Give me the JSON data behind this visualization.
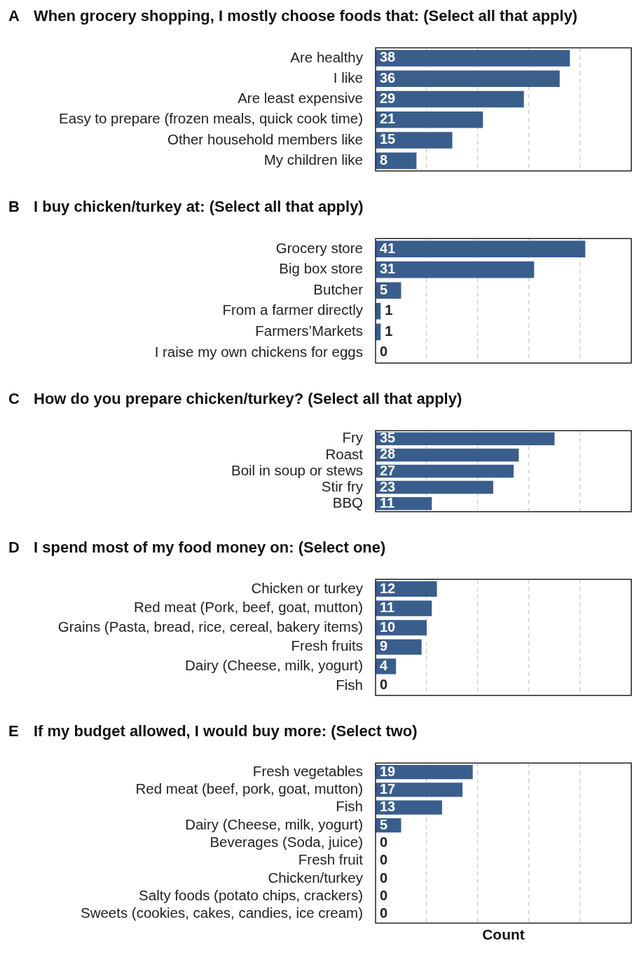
{
  "chart_data": [
    {
      "type": "bar",
      "orientation": "horizontal",
      "annotations": [
        "A"
      ],
      "title": "When grocery shopping, I mostly choose foods that: (Select all that apply)",
      "categories": [
        "Are healthy",
        "I like",
        "Are least expensive",
        "Easy to prepare (frozen meals, quick cook time)",
        "Other household members like",
        "My children like"
      ],
      "values": [
        38,
        36,
        29,
        21,
        15,
        8
      ],
      "color": "#3a5e8c",
      "xlim": [
        0,
        50
      ],
      "xticks": [
        {
          "value": 10,
          "label": null
        },
        {
          "value": 20,
          "label": null
        },
        {
          "value": 30,
          "label": null
        },
        {
          "value": 40,
          "label": null
        }
      ],
      "grid": "x",
      "tick_labels": "y",
      "data_labels": true
    },
    {
      "type": "bar",
      "orientation": "horizontal",
      "annotations": [
        "B"
      ],
      "title": "I buy chicken/turkey at: (Select all that apply)",
      "categories": [
        "Grocery store",
        "Big box store",
        "Butcher",
        "From a farmer directly",
        "Farmers’Markets",
        "I raise my own chickens for eggs"
      ],
      "values": [
        41,
        31,
        5,
        1,
        1,
        0
      ],
      "color": "#3a5e8c",
      "xlim": [
        0,
        50
      ],
      "xticks": [
        {
          "value": 10,
          "label": null
        },
        {
          "value": 20,
          "label": null
        },
        {
          "value": 30,
          "label": null
        },
        {
          "value": 40,
          "label": null
        }
      ],
      "grid": "x",
      "tick_labels": "y",
      "data_labels": true
    },
    {
      "type": "bar",
      "orientation": "horizontal",
      "annotations": [
        "C"
      ],
      "title": "How do you prepare chicken/turkey? (Select all that apply)",
      "categories": [
        "Fry",
        "Roast",
        "Boil in soup or stews",
        "Stir fry",
        "BBQ"
      ],
      "values": [
        35,
        28,
        27,
        23,
        11
      ],
      "color": "#3a5e8c",
      "xlim": [
        0,
        50
      ],
      "xticks": [
        {
          "value": 10,
          "label": null
        },
        {
          "value": 20,
          "label": null
        },
        {
          "value": 30,
          "label": null
        },
        {
          "value": 40,
          "label": null
        }
      ],
      "grid": "x",
      "tick_labels": "y",
      "data_labels": true
    },
    {
      "type": "bar",
      "orientation": "horizontal",
      "annotations": [
        "D"
      ],
      "title": "I spend most of my food money on: (Select one)",
      "categories": [
        "Chicken or turkey",
        "Red meat (Pork, beef, goat, mutton)",
        "Grains (Pasta, bread, rice, cereal, bakery items)",
        "Fresh fruits",
        "Dairy (Cheese, milk, yogurt)",
        "Fish"
      ],
      "values": [
        12,
        11,
        10,
        9,
        4,
        0
      ],
      "color": "#3a5e8c",
      "xlim": [
        0,
        50
      ],
      "xticks": [
        {
          "value": 10,
          "label": null
        },
        {
          "value": 20,
          "label": null
        },
        {
          "value": 30,
          "label": null
        },
        {
          "value": 40,
          "label": null
        }
      ],
      "grid": "x",
      "tick_labels": "y",
      "data_labels": true
    },
    {
      "type": "bar",
      "orientation": "horizontal",
      "annotations": [
        "E"
      ],
      "title": "If my budget allowed, I would buy more: (Select two)",
      "xlabel": "Count",
      "categories": [
        "Fresh vegetables",
        "Red meat (beef, pork, goat, mutton)",
        "Fish",
        "Dairy (Cheese, milk, yogurt)",
        "Beverages (Soda, juice)",
        "Fresh fruit",
        "Chicken/turkey",
        "Salty foods (potato chips, crackers)",
        "Sweets (cookies, cakes, candies, ice cream)"
      ],
      "values": [
        19,
        17,
        13,
        5,
        0,
        0,
        0,
        0,
        0
      ],
      "color": "#3a5e8c",
      "xlim": [
        0,
        50
      ],
      "xticks": [
        {
          "value": 10,
          "label": null
        },
        {
          "value": 20,
          "label": null
        },
        {
          "value": 30,
          "label": null
        },
        {
          "value": 40,
          "label": null
        }
      ],
      "grid": "x",
      "tick_labels": "y",
      "data_labels": true
    }
  ]
}
